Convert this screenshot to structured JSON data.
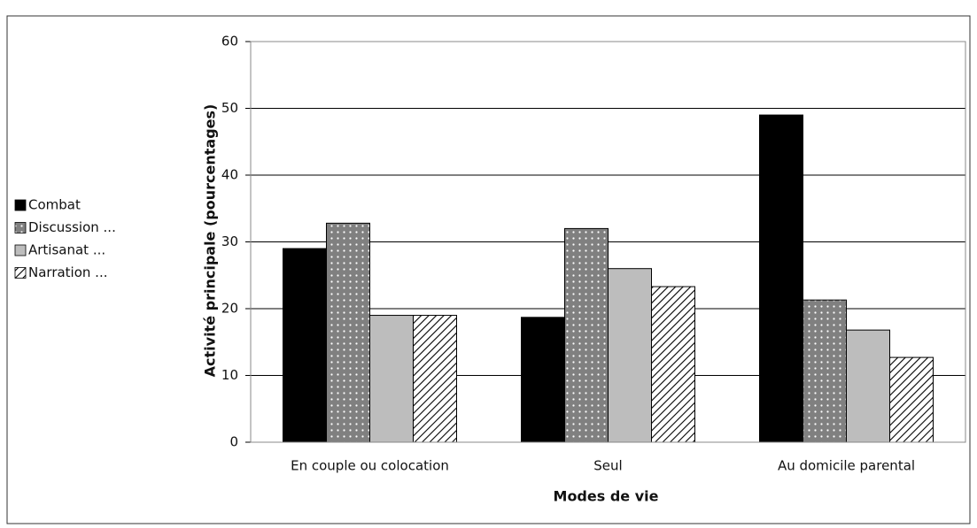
{
  "chart_data": {
    "type": "bar",
    "categories": [
      "En couple ou colocation",
      "Seul",
      "Au domicile parental"
    ],
    "series": [
      {
        "name": "Combat",
        "color": "#000000",
        "pattern": "solid",
        "values": [
          29,
          18.7,
          49
        ]
      },
      {
        "name": "Discussion ...",
        "color": "#808080",
        "pattern": "dots",
        "values": [
          32.8,
          32,
          21.3
        ]
      },
      {
        "name": "Artisanat ...",
        "color": "#bdbdbd",
        "pattern": "solid",
        "values": [
          19,
          26,
          16.8
        ]
      },
      {
        "name": "Narration ...",
        "color": "#000000",
        "pattern": "hatch",
        "values": [
          19,
          23.3,
          12.7
        ]
      }
    ],
    "x_label": "Modes de vie",
    "y_label": "Activité principale (pourcentages)",
    "ylim": [
      0,
      60
    ],
    "yticks": [
      0,
      10,
      20,
      30,
      40,
      50,
      60
    ],
    "grid": true,
    "legend": "left"
  }
}
